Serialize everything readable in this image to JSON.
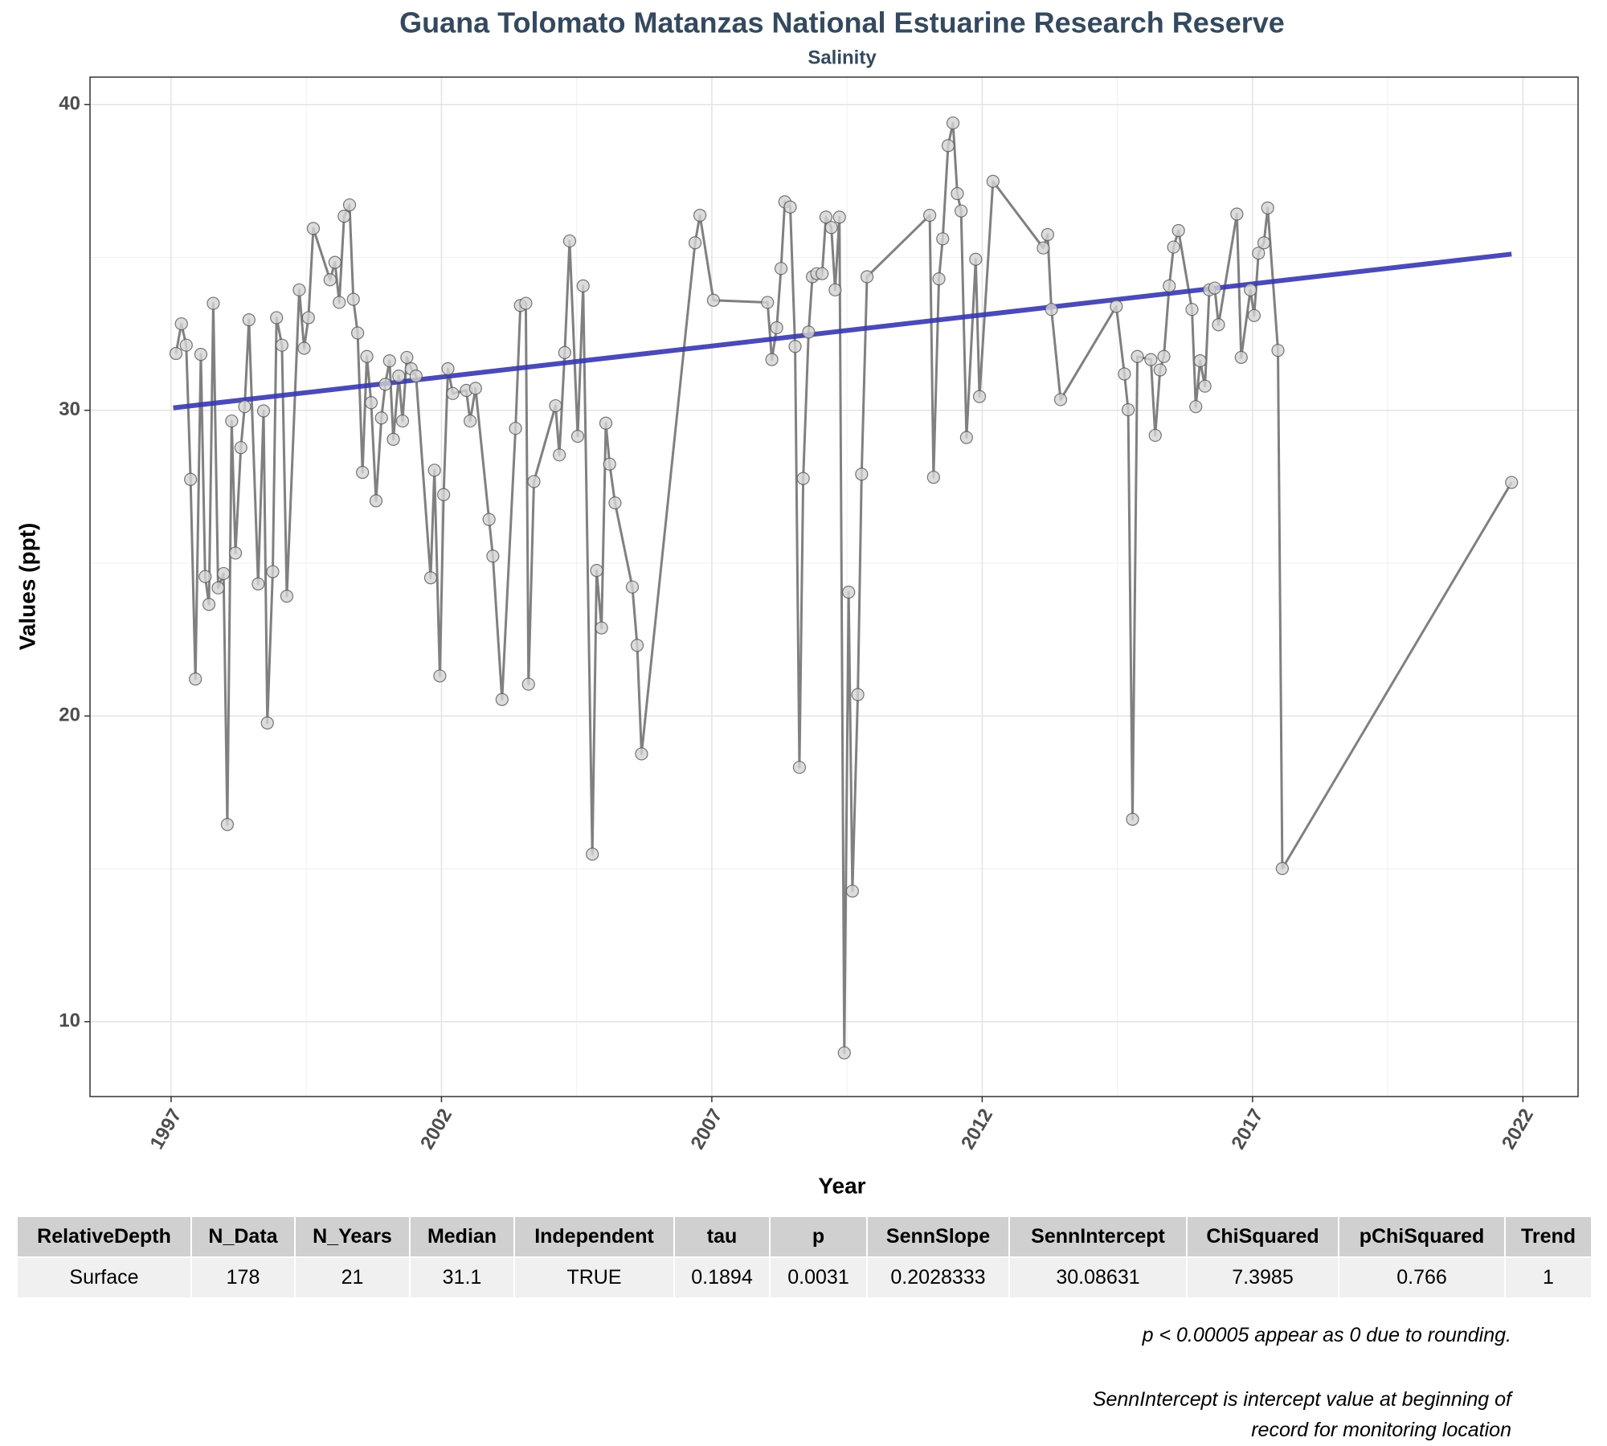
{
  "chart_data": {
    "type": "line",
    "title": "Guana Tolomato Matanzas National Estuarine Research Reserve",
    "subtitle": "Salinity",
    "x_label": "Year",
    "y_label": "Values (ppt)",
    "x": [
      1997.09,
      1997.19,
      1997.28,
      1997.36,
      1997.45,
      1997.55,
      1997.63,
      1997.7,
      1997.78,
      1997.87,
      1997.97,
      1998.04,
      1998.12,
      1998.19,
      1998.29,
      1998.36,
      1998.44,
      1998.61,
      1998.71,
      1998.78,
      1998.88,
      1998.95,
      1999.05,
      1999.14,
      1999.37,
      1999.46,
      1999.54,
      1999.63,
      1999.94,
      2000.03,
      2000.11,
      2000.2,
      2000.3,
      2000.37,
      2000.45,
      2000.54,
      2000.62,
      2000.7,
      2000.79,
      2000.89,
      2000.96,
      2001.04,
      2001.11,
      2001.21,
      2001.28,
      2001.36,
      2001.44,
      2001.53,
      2001.8,
      2001.87,
      2001.97,
      2002.04,
      2002.12,
      2002.21,
      2002.46,
      2002.53,
      2002.63,
      2002.88,
      2002.95,
      2003.12,
      2003.37,
      2003.46,
      2003.56,
      2003.61,
      2003.71,
      2004.11,
      2004.18,
      2004.28,
      2004.37,
      2004.52,
      2004.62,
      2004.79,
      2004.87,
      2004.96,
      2005.04,
      2005.11,
      2005.21,
      2005.53,
      2005.62,
      2005.7,
      2006.69,
      2006.78,
      2007.03,
      2008.03,
      2008.11,
      2008.2,
      2008.28,
      2008.35,
      2008.45,
      2008.54,
      2008.62,
      2008.69,
      2008.79,
      2008.86,
      2008.94,
      2009.04,
      2009.11,
      2009.21,
      2009.28,
      2009.36,
      2009.45,
      2009.53,
      2009.6,
      2009.7,
      2009.77,
      2009.87,
      2011.03,
      2011.1,
      2011.2,
      2011.27,
      2011.37,
      2011.46,
      2011.54,
      2011.61,
      2011.71,
      2011.88,
      2011.95,
      2012.2,
      2013.13,
      2013.21,
      2013.28,
      2013.45,
      2014.48,
      2014.63,
      2014.7,
      2014.78,
      2014.87,
      2015.12,
      2015.2,
      2015.29,
      2015.36,
      2015.46,
      2015.54,
      2015.63,
      2015.88,
      2015.95,
      2016.03,
      2016.12,
      2016.2,
      2016.3,
      2016.37,
      2016.71,
      2016.79,
      2016.96,
      2017.03,
      2017.11,
      2017.21,
      2017.28,
      2017.47,
      2017.55,
      2021.79
    ],
    "values": [
      31.86,
      32.83,
      32.13,
      27.74,
      21.21,
      31.83,
      24.56,
      23.65,
      33.5,
      24.19,
      24.66,
      16.45,
      29.65,
      25.33,
      28.78,
      30.12,
      32.96,
      24.32,
      29.98,
      19.77,
      24.72,
      33.03,
      32.13,
      23.92,
      33.94,
      32.03,
      33.03,
      35.95,
      34.27,
      34.84,
      33.53,
      36.35,
      36.72,
      33.63,
      32.53,
      27.97,
      31.76,
      30.25,
      27.04,
      29.75,
      30.85,
      31.62,
      29.05,
      31.12,
      29.65,
      31.73,
      31.36,
      31.12,
      24.52,
      28.04,
      21.31,
      27.24,
      31.36,
      30.55,
      30.65,
      29.65,
      30.72,
      26.43,
      25.23,
      20.54,
      29.41,
      33.43,
      33.5,
      21.04,
      27.67,
      30.15,
      28.54,
      31.89,
      35.54,
      29.15,
      34.07,
      15.48,
      24.76,
      22.88,
      29.58,
      28.24,
      26.97,
      24.22,
      22.31,
      18.76,
      35.48,
      36.38,
      33.6,
      33.53,
      31.66,
      32.7,
      34.64,
      36.82,
      36.65,
      32.09,
      18.32,
      27.77,
      32.56,
      34.37,
      34.47,
      34.47,
      36.32,
      35.98,
      33.94,
      36.32,
      8.98,
      24.05,
      14.27,
      20.7,
      27.91,
      34.37,
      36.38,
      27.81,
      34.3,
      35.61,
      38.66,
      39.4,
      37.09,
      36.52,
      29.11,
      34.94,
      30.45,
      37.49,
      35.31,
      35.75,
      33.3,
      30.35,
      33.4,
      31.19,
      30.02,
      16.62,
      31.76,
      31.66,
      29.18,
      31.32,
      31.76,
      34.07,
      35.34,
      35.88,
      33.3,
      30.12,
      31.62,
      30.79,
      33.94,
      34.0,
      32.8,
      36.42,
      31.73,
      33.94,
      33.1,
      35.14,
      35.48,
      36.62,
      31.96,
      15.01,
      27.64
    ],
    "color": "#808080",
    "marker_fill": "#d3d3d3",
    "trend_line": {
      "x": [
        1997.04,
        2021.79
      ],
      "values": [
        30.08,
        35.11
      ],
      "color": "#3636b0"
    },
    "xlim": [
      1995.5,
      2023.02
    ],
    "ylim": [
      7.55,
      40.9
    ],
    "xticks": [
      1997,
      2002,
      2007,
      2012,
      2017,
      2022
    ],
    "yticks": [
      10,
      20,
      30,
      40
    ],
    "grid": true,
    "minor_grid": true
  },
  "table": {
    "header": [
      "RelativeDepth",
      "N_Data",
      "N_Years",
      "Median",
      "Independent",
      "tau",
      "p",
      "SennSlope",
      "SennIntercept",
      "ChiSquared",
      "pChiSquared",
      "Trend"
    ],
    "rows": [
      [
        "Surface",
        "178",
        "21",
        "31.1",
        "TRUE",
        "0.1894",
        "0.0031",
        "0.2028333",
        "30.08631",
        "7.3985",
        "0.766",
        "1"
      ]
    ]
  },
  "notes": [
    "p < 0.00005 appear as 0 due to rounding.",
    "SennIntercept is intercept value at beginning of",
    "record for monitoring location"
  ]
}
